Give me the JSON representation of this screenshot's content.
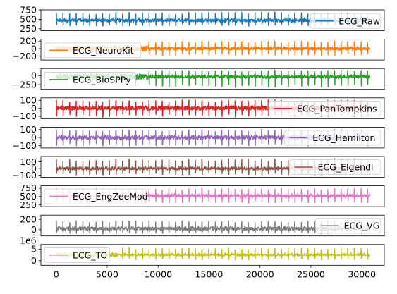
{
  "chart_data": {
    "type": "line",
    "layout": "stacked-subplots",
    "shared_x": true,
    "xlim": [
      -1500,
      32200
    ],
    "x_ticks": [
      0,
      5000,
      10000,
      15000,
      20000,
      25000,
      30000
    ],
    "x_tick_labels": [
      "0",
      "5000",
      "10000",
      "15000",
      "20000",
      "25000",
      "30000"
    ],
    "n_samples": 30800,
    "panels": [
      {
        "name": "ECG_Raw",
        "color": "#1f77b4",
        "ylim": [
          200,
          750
        ],
        "y_ticks": [
          250,
          500,
          750
        ],
        "y_tick_labels": [
          "250",
          "500",
          "750"
        ],
        "legend": "center-right",
        "signal": {
          "baseline": 470,
          "beat_interval": 650,
          "peak": 690,
          "trough": 320,
          "noise": 45,
          "onset": 0
        }
      },
      {
        "name": "ECG_NeuroKit",
        "color": "#ff7f0e",
        "ylim": [
          -300,
          250
        ],
        "y_ticks": [
          -200,
          0,
          200
        ],
        "y_tick_labels": [
          "−200",
          "0",
          "200"
        ],
        "legend": "center-left",
        "signal": {
          "baseline": 0,
          "beat_interval": 650,
          "peak": 210,
          "trough": -200,
          "noise": 40,
          "onset": 9000
        }
      },
      {
        "name": "ECG_BioSPPy",
        "color": "#2ca02c",
        "ylim": [
          -380,
          200
        ],
        "y_ticks": [
          -250,
          0
        ],
        "y_tick_labels": [
          "−250",
          "0"
        ],
        "legend": "center-left",
        "signal": {
          "baseline": -30,
          "beat_interval": 650,
          "peak": 160,
          "trough": -330,
          "noise": 40,
          "onset": 9000
        }
      },
      {
        "name": "ECG_PanTompkins",
        "color": "#d62728",
        "ylim": [
          -130,
          130
        ],
        "y_ticks": [
          -100,
          0,
          100
        ],
        "y_tick_labels": [
          "−100",
          "0",
          "100"
        ],
        "legend": "lower-right",
        "signal": {
          "baseline": 0,
          "beat_interval": 650,
          "peak": 110,
          "trough": -110,
          "noise": 25,
          "onset": 0
        }
      },
      {
        "name": "ECG_Hamilton",
        "color": "#9467bd",
        "ylim": [
          -130,
          130
        ],
        "y_ticks": [
          -100,
          0,
          100
        ],
        "y_tick_labels": [
          "−100",
          "0",
          "100"
        ],
        "legend": "lower-right",
        "signal": {
          "baseline": 0,
          "beat_interval": 650,
          "peak": 105,
          "trough": -110,
          "noise": 25,
          "onset": 0
        }
      },
      {
        "name": "ECG_Elgendi",
        "color": "#8c564b",
        "ylim": [
          -130,
          180
        ],
        "y_ticks": [
          -100,
          0,
          100
        ],
        "y_tick_labels": [
          "−100",
          "0",
          "100"
        ],
        "legend": "lower-right",
        "signal": {
          "baseline": 0,
          "beat_interval": 650,
          "peak": 150,
          "trough": -100,
          "noise": 20,
          "onset": 0
        }
      },
      {
        "name": "ECG_EngZeeMod",
        "color": "#e377c2",
        "ylim": [
          200,
          820
        ],
        "y_ticks": [
          250,
          500,
          750
        ],
        "y_tick_labels": [
          "250",
          "500",
          "750"
        ],
        "legend": "lower-left",
        "signal": {
          "baseline": 520,
          "beat_interval": 650,
          "peak": 760,
          "trough": 300,
          "noise": 45,
          "onset": 0
        }
      },
      {
        "name": "ECG_VG",
        "color": "#7f7f7f",
        "ylim": [
          -120,
          280
        ],
        "y_ticks": [
          0,
          200
        ],
        "y_tick_labels": [
          "0",
          "200"
        ],
        "legend": "lower-right",
        "signal": {
          "baseline": 20,
          "beat_interval": 650,
          "peak": 180,
          "trough": -80,
          "noise": 35,
          "onset": 0
        }
      },
      {
        "name": "ECG_TC",
        "color": "#bcbd22",
        "ylim": [
          -2.0,
          7.0
        ],
        "y_ticks": [
          0,
          5
        ],
        "y_tick_labels": [
          "0",
          "5"
        ],
        "y_offset_text": "1e6",
        "legend": "lower-left",
        "signal": {
          "baseline": 2.5,
          "beat_interval": 650,
          "peak": 5.6,
          "trough": 0.2,
          "noise": 0.3,
          "onset": 6000
        }
      }
    ]
  }
}
